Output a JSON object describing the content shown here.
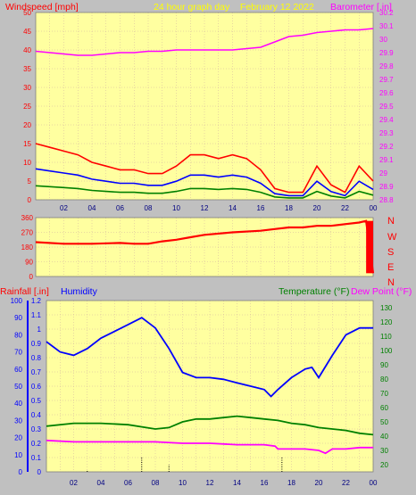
{
  "header": {
    "windspeed_label": "Windspeed [mph]",
    "title": "24 hour graph day    February 12 2022",
    "barometer_label": "Barometer [.in]"
  },
  "middle": {
    "directions": [
      "N",
      "W",
      "S",
      "E",
      "N"
    ]
  },
  "bottom": {
    "rainfall_label": "Rainfall [.in]",
    "humidity_label": "Humidity",
    "temperature_label": "Temperature (°F)",
    "dewpoint_label": "Dew Point (°F)"
  },
  "colors": {
    "background": "#c0c0c0",
    "plot_bg": "#ffffa0",
    "grid": "#d0b0a0",
    "wind_gust": "#ff0000",
    "wind_avg": "#0000ff",
    "wind_low": "#008000",
    "barometer": "#ff00ff",
    "direction": "#ff0000",
    "humidity": "#0000ff",
    "temperature": "#008000",
    "dewpoint": "#ff00ff",
    "rainfall": "#000000",
    "title": "#ffff00"
  },
  "chart_data": [
    {
      "type": "line",
      "id": "wind-baro",
      "x_ticks": [
        "02",
        "04",
        "06",
        "08",
        "10",
        "12",
        "14",
        "16",
        "18",
        "20",
        "22",
        "00"
      ],
      "xlim": [
        0,
        24
      ],
      "ylim_left": [
        0,
        50
      ],
      "y_ticks_left": [
        "0",
        "5",
        "10",
        "15",
        "20",
        "25",
        "30",
        "35",
        "40",
        "45",
        "50"
      ],
      "ylim_right": [
        28.8,
        30.2
      ],
      "y_ticks_right": [
        "28.8",
        "28.9",
        "29",
        "29.1",
        "29.2",
        "29.3",
        "29.4",
        "29.5",
        "29.6",
        "29.7",
        "29.8",
        "29.9",
        "30",
        "30.1",
        "30.2"
      ],
      "series": [
        {
          "name": "Windspeed [mph]",
          "axis": "left",
          "x": [
            0,
            1,
            2,
            3,
            4,
            5,
            6,
            7,
            8,
            9,
            10,
            11,
            12,
            13,
            14,
            15,
            16,
            17,
            18,
            19,
            20,
            21,
            22,
            23,
            24
          ],
          "values": [
            15,
            14,
            13,
            12,
            10,
            9,
            8,
            8,
            7,
            7,
            9,
            12,
            12,
            11,
            12,
            11,
            8,
            3,
            2,
            2,
            9,
            4,
            2,
            9,
            5
          ]
        },
        {
          "name": "Barometer [.in]",
          "axis": "right",
          "x": [
            0,
            1,
            2,
            3,
            4,
            5,
            6,
            7,
            8,
            9,
            10,
            11,
            12,
            13,
            14,
            15,
            16,
            17,
            18,
            19,
            20,
            21,
            22,
            23,
            24
          ],
          "values": [
            29.91,
            29.9,
            29.89,
            29.88,
            29.88,
            29.89,
            29.9,
            29.9,
            29.91,
            29.91,
            29.92,
            29.92,
            29.92,
            29.92,
            29.92,
            29.93,
            29.94,
            29.98,
            30.02,
            30.03,
            30.05,
            30.06,
            30.07,
            30.07,
            30.08
          ]
        }
      ]
    },
    {
      "type": "scatter",
      "id": "wind-direction",
      "x_ticks": [
        "02",
        "04",
        "06",
        "08",
        "10",
        "12",
        "14",
        "16",
        "18",
        "20",
        "22",
        "00"
      ],
      "xlim": [
        0,
        24
      ],
      "ylim": [
        0,
        360
      ],
      "y_ticks": [
        "0",
        "90",
        "180",
        "270",
        "360"
      ],
      "series": [
        {
          "name": "Wind direction",
          "x": [
            0,
            2,
            4,
            6,
            7,
            8,
            9,
            10,
            11,
            12,
            14,
            16,
            17,
            18,
            19,
            20,
            21,
            22,
            23,
            23.5,
            24
          ],
          "values": [
            210,
            200,
            200,
            205,
            200,
            200,
            215,
            225,
            240,
            255,
            270,
            280,
            290,
            300,
            300,
            310,
            310,
            320,
            330,
            340,
            20
          ]
        }
      ]
    },
    {
      "type": "line",
      "id": "rain-hum-temp",
      "x_ticks": [
        "02",
        "04",
        "06",
        "08",
        "10",
        "12",
        "14",
        "16",
        "18",
        "20",
        "22",
        "00"
      ],
      "xlim": [
        0,
        24
      ],
      "ylim_humidity": [
        0,
        100
      ],
      "y_ticks_humidity": [
        "0",
        "10",
        "20",
        "30",
        "40",
        "50",
        "60",
        "70",
        "80",
        "90",
        "100"
      ],
      "ylim_rain": [
        0,
        1.2
      ],
      "y_ticks_rain": [
        "0",
        "0.1",
        "0.2",
        "0.3",
        "0.4",
        "0.5",
        "0.6",
        "0.7",
        "0.8",
        "0.9",
        "1",
        "1.1",
        "1.2"
      ],
      "ylim_temp": [
        15,
        135
      ],
      "y_ticks_temp": [
        "20",
        "30",
        "40",
        "50",
        "60",
        "70",
        "80",
        "90",
        "100",
        "110",
        "120",
        "130"
      ],
      "series": [
        {
          "name": "Humidity",
          "axis": "humidity",
          "x": [
            0,
            1,
            2,
            3,
            4,
            5,
            6,
            7,
            8,
            9,
            10,
            11,
            12,
            13,
            14,
            15,
            16,
            16.5,
            17,
            18,
            19,
            19.5,
            20,
            21,
            22,
            23,
            24
          ],
          "values": [
            76,
            70,
            68,
            72,
            78,
            82,
            86,
            90,
            84,
            72,
            58,
            55,
            55,
            54,
            52,
            50,
            48,
            44,
            48,
            55,
            60,
            61,
            55,
            68,
            80,
            84,
            84
          ]
        },
        {
          "name": "Temperature (°F)",
          "axis": "temp",
          "x": [
            0,
            2,
            4,
            6,
            8,
            9,
            10,
            11,
            12,
            13,
            14,
            15,
            16,
            17,
            18,
            19,
            20,
            21,
            22,
            23,
            24
          ],
          "values": [
            47,
            49,
            49,
            48,
            45,
            46,
            50,
            52,
            52,
            53,
            54,
            53,
            52,
            51,
            49,
            48,
            46,
            45,
            44,
            42,
            41
          ]
        },
        {
          "name": "Dew Point (°F)",
          "axis": "temp",
          "x": [
            0,
            2,
            4,
            6,
            8,
            10,
            12,
            14,
            15,
            16,
            16.8,
            17,
            18,
            19,
            20,
            20.5,
            21,
            22,
            23,
            24
          ],
          "values": [
            37,
            36,
            36,
            36,
            36,
            35,
            35,
            34,
            34,
            34,
            33,
            31,
            31,
            31,
            30,
            28,
            31,
            31,
            32,
            32
          ]
        },
        {
          "name": "Rainfall [.in]",
          "axis": "rain",
          "x": [
            3,
            7,
            9,
            17.3
          ],
          "values": [
            0.01,
            0.1,
            0.05,
            0.1
          ]
        }
      ]
    }
  ]
}
